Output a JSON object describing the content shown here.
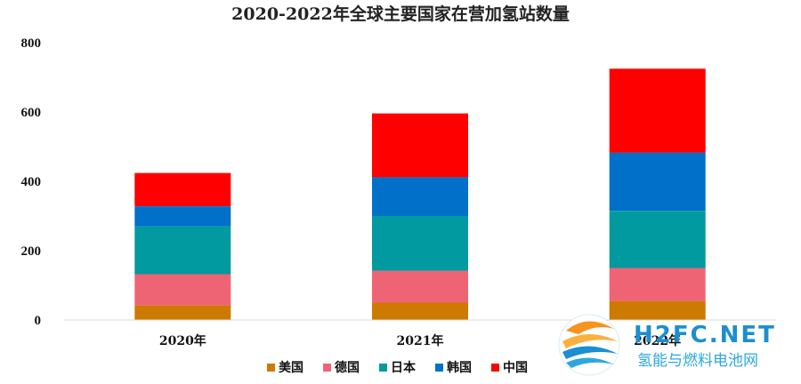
{
  "chart_data": {
    "type": "bar",
    "stacked": true,
    "title": "2020-2022年全球主要国家在营加氢站数量",
    "xlabel": "",
    "ylabel": "",
    "categories": [
      "2020年",
      "2021年",
      "2022年"
    ],
    "ylim": [
      0,
      800
    ],
    "yticks": [
      0,
      200,
      400,
      600,
      800
    ],
    "grid": false,
    "legend_position": "bottom",
    "series": [
      {
        "name": "美国",
        "color": "#cc7a00",
        "values": [
          42,
          50,
          55
        ]
      },
      {
        "name": "德国",
        "color": "#ef6474",
        "values": [
          90,
          92,
          95
        ]
      },
      {
        "name": "日本",
        "color": "#009aa0",
        "values": [
          138,
          158,
          165
        ]
      },
      {
        "name": "韩国",
        "color": "#0070c8",
        "values": [
          58,
          112,
          168
        ]
      },
      {
        "name": "中国",
        "color": "#ff0000",
        "values": [
          96,
          184,
          242
        ]
      }
    ]
  },
  "watermark": {
    "title": "H2FC.NET",
    "subtitle": "氢能与燃料电池网",
    "logo_icon": "h2fc-wave-logo-icon"
  }
}
